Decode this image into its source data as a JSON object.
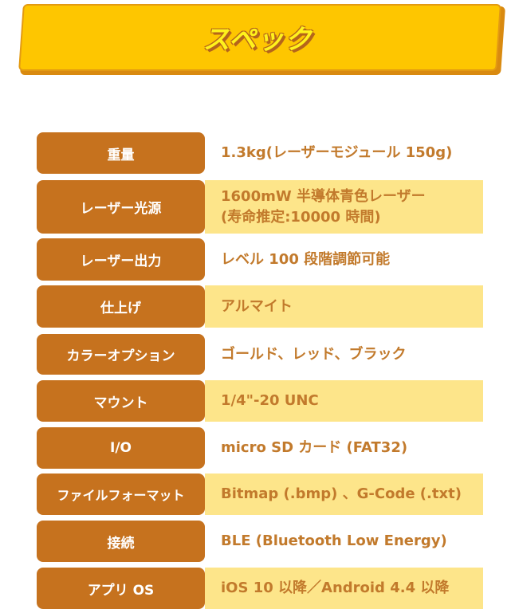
{
  "header": {
    "title": "スペック"
  },
  "colors": {
    "banner": "#fec600",
    "label_bg": "#c6721e",
    "alt_row_bg": "#fde58a",
    "value_text": "#c27a2c"
  },
  "specs": [
    {
      "label": "重量",
      "value": "1.3kg(レーザーモジュール 150g)"
    },
    {
      "label": "レーザー光源",
      "value": "1600mW 半導体青色レーザー",
      "value2": "(寿命推定:10000 時間)"
    },
    {
      "label": "レーザー出力",
      "value": "レベル 100 段階調節可能"
    },
    {
      "label": "仕上げ",
      "value": "アルマイト"
    },
    {
      "label": "カラーオプション",
      "value": "ゴールド、レッド、ブラック"
    },
    {
      "label": "マウント",
      "value": "1/4\"-20 UNC"
    },
    {
      "label": "I/O",
      "value": "micro SD カード (FAT32)"
    },
    {
      "label": "ファイルフォーマット",
      "value": "Bitmap (.bmp) 、G-Code (.txt)"
    },
    {
      "label": "接続",
      "value": "BLE (Bluetooth Low Energy)"
    },
    {
      "label": "アプリ OS",
      "value": "iOS 10 以降／Android 4.4 以降"
    }
  ]
}
